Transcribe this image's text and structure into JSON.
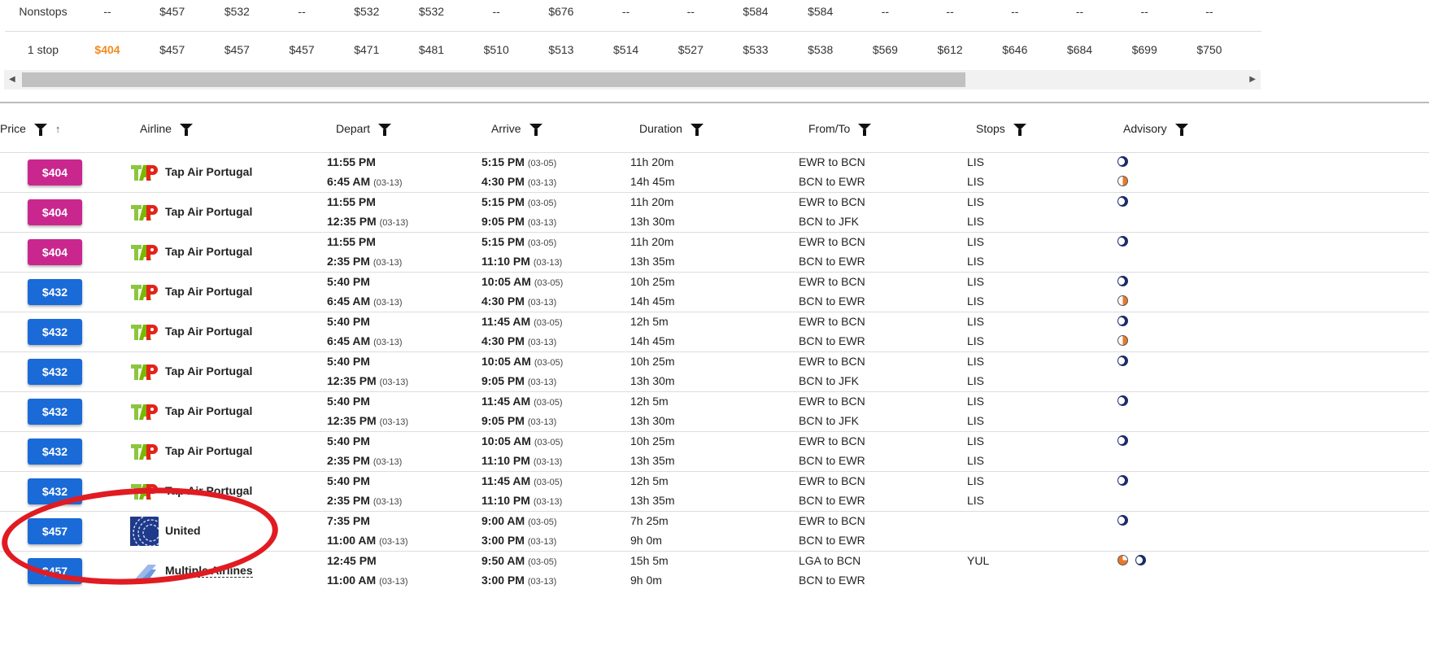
{
  "summary": {
    "nonstops": {
      "label": "Nonstops",
      "cells": [
        "--",
        "$457",
        "$532",
        "--",
        "$532",
        "$532",
        "--",
        "$676",
        "--",
        "--",
        "$584",
        "$584",
        "--",
        "--",
        "--",
        "--",
        "--",
        "--"
      ]
    },
    "one_stop": {
      "label": "1 stop",
      "cells": [
        "$404",
        "$457",
        "$457",
        "$457",
        "$471",
        "$481",
        "$510",
        "$513",
        "$514",
        "$527",
        "$533",
        "$538",
        "$569",
        "$612",
        "$646",
        "$684",
        "$699",
        "$750"
      ]
    },
    "highlight_color": "#f28b1e"
  },
  "columns": {
    "price": "Price",
    "airline": "Airline",
    "depart": "Depart",
    "arrive": "Arrive",
    "duration": "Duration",
    "fromto": "From/To",
    "stops": "Stops",
    "advisory": "Advisory"
  },
  "colors": {
    "magenta": "#c9278e",
    "blue": "#1a6ad8",
    "annotation": "#e11b22"
  },
  "rows": [
    {
      "price": "$404",
      "color": "magenta",
      "airline": "Tap Air Portugal",
      "logo": "tap",
      "legs": [
        {
          "dep": "11:55 PM",
          "dep_d": "",
          "arr": "5:15 PM",
          "arr_d": "(03-05)",
          "dur": "11h 20m",
          "ft": "EWR to BCN",
          "stops": "LIS",
          "adv": [
            "moon"
          ]
        },
        {
          "dep": "6:45 AM",
          "dep_d": "(03-13)",
          "arr": "4:30 PM",
          "arr_d": "(03-13)",
          "dur": "14h 45m",
          "ft": "BCN to EWR",
          "stops": "LIS",
          "adv": [
            "half"
          ]
        }
      ]
    },
    {
      "price": "$404",
      "color": "magenta",
      "airline": "Tap Air Portugal",
      "logo": "tap",
      "legs": [
        {
          "dep": "11:55 PM",
          "dep_d": "",
          "arr": "5:15 PM",
          "arr_d": "(03-05)",
          "dur": "11h 20m",
          "ft": "EWR to BCN",
          "stops": "LIS",
          "adv": [
            "moon"
          ]
        },
        {
          "dep": "12:35 PM",
          "dep_d": "(03-13)",
          "arr": "9:05 PM",
          "arr_d": "(03-13)",
          "dur": "13h 30m",
          "ft": "BCN to JFK",
          "stops": "LIS",
          "adv": []
        }
      ]
    },
    {
      "price": "$404",
      "color": "magenta",
      "airline": "Tap Air Portugal",
      "logo": "tap",
      "legs": [
        {
          "dep": "11:55 PM",
          "dep_d": "",
          "arr": "5:15 PM",
          "arr_d": "(03-05)",
          "dur": "11h 20m",
          "ft": "EWR to BCN",
          "stops": "LIS",
          "adv": [
            "moon"
          ]
        },
        {
          "dep": "2:35 PM",
          "dep_d": "(03-13)",
          "arr": "11:10 PM",
          "arr_d": "(03-13)",
          "dur": "13h 35m",
          "ft": "BCN to EWR",
          "stops": "LIS",
          "adv": []
        }
      ]
    },
    {
      "price": "$432",
      "color": "blue",
      "airline": "Tap Air Portugal",
      "logo": "tap",
      "legs": [
        {
          "dep": "5:40 PM",
          "dep_d": "",
          "arr": "10:05 AM",
          "arr_d": "(03-05)",
          "dur": "10h 25m",
          "ft": "EWR to BCN",
          "stops": "LIS",
          "adv": [
            "moon"
          ]
        },
        {
          "dep": "6:45 AM",
          "dep_d": "(03-13)",
          "arr": "4:30 PM",
          "arr_d": "(03-13)",
          "dur": "14h 45m",
          "ft": "BCN to EWR",
          "stops": "LIS",
          "adv": [
            "half"
          ]
        }
      ]
    },
    {
      "price": "$432",
      "color": "blue",
      "airline": "Tap Air Portugal",
      "logo": "tap",
      "legs": [
        {
          "dep": "5:40 PM",
          "dep_d": "",
          "arr": "11:45 AM",
          "arr_d": "(03-05)",
          "dur": "12h 5m",
          "ft": "EWR to BCN",
          "stops": "LIS",
          "adv": [
            "moon"
          ]
        },
        {
          "dep": "6:45 AM",
          "dep_d": "(03-13)",
          "arr": "4:30 PM",
          "arr_d": "(03-13)",
          "dur": "14h 45m",
          "ft": "BCN to EWR",
          "stops": "LIS",
          "adv": [
            "half"
          ]
        }
      ]
    },
    {
      "price": "$432",
      "color": "blue",
      "airline": "Tap Air Portugal",
      "logo": "tap",
      "legs": [
        {
          "dep": "5:40 PM",
          "dep_d": "",
          "arr": "10:05 AM",
          "arr_d": "(03-05)",
          "dur": "10h 25m",
          "ft": "EWR to BCN",
          "stops": "LIS",
          "adv": [
            "moon"
          ]
        },
        {
          "dep": "12:35 PM",
          "dep_d": "(03-13)",
          "arr": "9:05 PM",
          "arr_d": "(03-13)",
          "dur": "13h 30m",
          "ft": "BCN to JFK",
          "stops": "LIS",
          "adv": []
        }
      ]
    },
    {
      "price": "$432",
      "color": "blue",
      "airline": "Tap Air Portugal",
      "logo": "tap",
      "legs": [
        {
          "dep": "5:40 PM",
          "dep_d": "",
          "arr": "11:45 AM",
          "arr_d": "(03-05)",
          "dur": "12h 5m",
          "ft": "EWR to BCN",
          "stops": "LIS",
          "adv": [
            "moon"
          ]
        },
        {
          "dep": "12:35 PM",
          "dep_d": "(03-13)",
          "arr": "9:05 PM",
          "arr_d": "(03-13)",
          "dur": "13h 30m",
          "ft": "BCN to JFK",
          "stops": "LIS",
          "adv": []
        }
      ]
    },
    {
      "price": "$432",
      "color": "blue",
      "airline": "Tap Air Portugal",
      "logo": "tap",
      "legs": [
        {
          "dep": "5:40 PM",
          "dep_d": "",
          "arr": "10:05 AM",
          "arr_d": "(03-05)",
          "dur": "10h 25m",
          "ft": "EWR to BCN",
          "stops": "LIS",
          "adv": [
            "moon"
          ]
        },
        {
          "dep": "2:35 PM",
          "dep_d": "(03-13)",
          "arr": "11:10 PM",
          "arr_d": "(03-13)",
          "dur": "13h 35m",
          "ft": "BCN to EWR",
          "stops": "LIS",
          "adv": []
        }
      ]
    },
    {
      "price": "$432",
      "color": "blue",
      "airline": "Tap Air Portugal",
      "logo": "tap",
      "legs": [
        {
          "dep": "5:40 PM",
          "dep_d": "",
          "arr": "11:45 AM",
          "arr_d": "(03-05)",
          "dur": "12h 5m",
          "ft": "EWR to BCN",
          "stops": "LIS",
          "adv": [
            "moon"
          ]
        },
        {
          "dep": "2:35 PM",
          "dep_d": "(03-13)",
          "arr": "11:10 PM",
          "arr_d": "(03-13)",
          "dur": "13h 35m",
          "ft": "BCN to EWR",
          "stops": "LIS",
          "adv": []
        }
      ]
    },
    {
      "price": "$457",
      "color": "blue",
      "airline": "United",
      "logo": "united",
      "legs": [
        {
          "dep": "7:35 PM",
          "dep_d": "",
          "arr": "9:00 AM",
          "arr_d": "(03-05)",
          "dur": "7h 25m",
          "ft": "EWR to BCN",
          "stops": "",
          "adv": [
            "moon"
          ]
        },
        {
          "dep": "11:00 AM",
          "dep_d": "(03-13)",
          "arr": "3:00 PM",
          "arr_d": "(03-13)",
          "dur": "9h 0m",
          "ft": "BCN to EWR",
          "stops": "",
          "adv": []
        }
      ]
    },
    {
      "price": "$457",
      "color": "blue",
      "airline": "Multiple Airlines",
      "logo": "multi",
      "legs": [
        {
          "dep": "12:45 PM",
          "dep_d": "",
          "arr": "9:50 AM",
          "arr_d": "(03-05)",
          "dur": "15h 5m",
          "ft": "LGA to BCN",
          "stops": "YUL",
          "adv": [
            "half2",
            "moon"
          ]
        },
        {
          "dep": "11:00 AM",
          "dep_d": "(03-13)",
          "arr": "3:00 PM",
          "arr_d": "(03-13)",
          "dur": "9h 0m",
          "ft": "BCN to EWR",
          "stops": "",
          "adv": []
        }
      ]
    }
  ]
}
